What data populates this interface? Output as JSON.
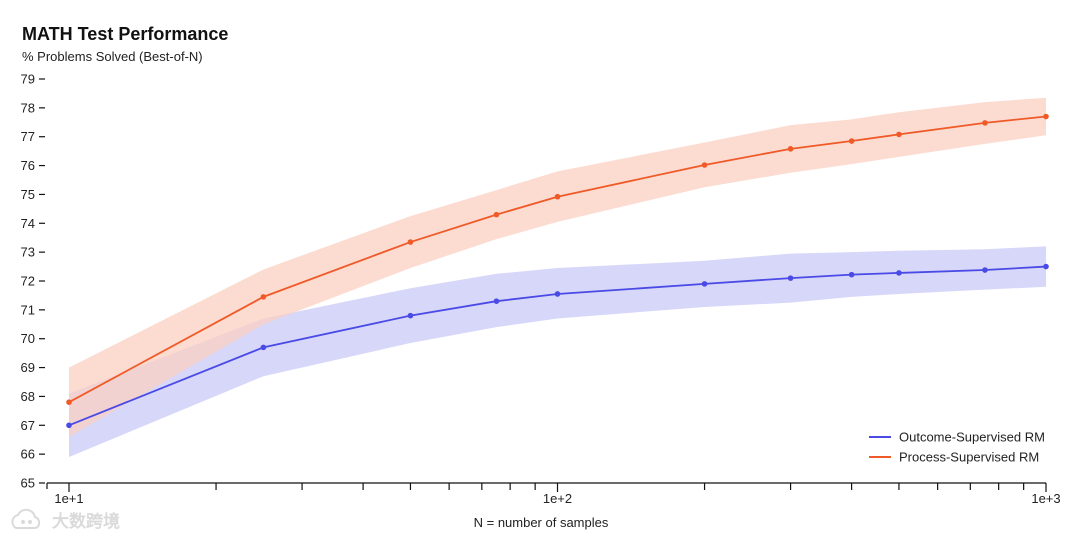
{
  "chart_data": {
    "type": "line",
    "title": "MATH Test Performance",
    "ylabel": "% Problems Solved (Best-of-N)",
    "xlabel": "N = number of samples",
    "x_scale": "log",
    "xlim": [
      10,
      1000
    ],
    "ylim": [
      65,
      79
    ],
    "y_ticks": [
      "65",
      "66",
      "67",
      "68",
      "69",
      "70",
      "71",
      "72",
      "73",
      "74",
      "75",
      "76",
      "77",
      "78",
      "79"
    ],
    "x_tick_labels": [
      {
        "value": 10,
        "label": "1e+1"
      },
      {
        "value": 100,
        "label": "1e+2"
      },
      {
        "value": 1000,
        "label": "1e+3"
      }
    ],
    "x": [
      10,
      25,
      50,
      75,
      100,
      200,
      300,
      400,
      500,
      750,
      1000
    ],
    "legend_position": "bottom-right",
    "grid": false,
    "series": [
      {
        "name": "Outcome-Supervised RM",
        "color": "#4a4ae6",
        "band_color": "#c9caf7",
        "values": [
          67.0,
          69.7,
          70.8,
          71.3,
          71.55,
          71.9,
          72.1,
          72.22,
          72.28,
          72.38,
          72.5
        ],
        "lower": [
          65.9,
          68.7,
          69.85,
          70.4,
          70.7,
          71.1,
          71.25,
          71.45,
          71.55,
          71.7,
          71.8
        ],
        "upper": [
          68.1,
          70.7,
          71.75,
          72.25,
          72.45,
          72.7,
          72.95,
          73.0,
          73.05,
          73.1,
          73.2
        ]
      },
      {
        "name": "Process-Supervised RM",
        "color": "#f05a28",
        "band_color": "#fbd0c2",
        "values": [
          67.8,
          71.45,
          73.35,
          74.3,
          74.92,
          76.02,
          76.58,
          76.85,
          77.08,
          77.48,
          77.7
        ],
        "lower": [
          66.6,
          70.5,
          72.45,
          73.45,
          74.05,
          75.25,
          75.75,
          76.05,
          76.3,
          76.75,
          77.05
        ],
        "upper": [
          69.0,
          72.4,
          74.25,
          75.15,
          75.8,
          76.8,
          77.4,
          77.6,
          77.85,
          78.2,
          78.35
        ]
      }
    ]
  },
  "watermark": {
    "icon": "cloud-logo-icon",
    "text": "大数跨境"
  }
}
